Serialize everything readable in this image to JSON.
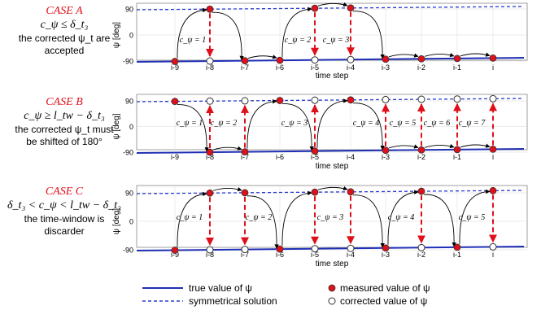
{
  "cases": [
    {
      "title": "CASE A",
      "condition": "c_ψ ≤ δ_t₃",
      "description": [
        "the corrected ψ_t  are",
        "accepted"
      ],
      "measured_high_steps": [
        "i-8",
        "i-5",
        "i-4"
      ],
      "c_labels": [
        "c_ψ = 1",
        "c_ψ = 2",
        "c_ψ = 3"
      ]
    },
    {
      "title": "CASE B",
      "condition": "c_ψ ≥ l_tw − δ_t₃",
      "description": [
        "the corrected ψ_t must",
        "be shifted of 180°"
      ],
      "measured_high_steps": [
        "i-9",
        "i-6",
        "i-4"
      ],
      "c_labels": [
        "c_ψ = 1",
        "c_ψ = 2",
        "c_ψ = 3",
        "c_ψ = 4",
        "c_ψ = 5",
        "c_ψ = 6",
        "c_ψ = 7"
      ]
    },
    {
      "title": "CASE C",
      "condition": "δ_t₃ < c_ψ < l_tw − δ_t₃",
      "description": [
        "the time-window is",
        "discarder"
      ],
      "measured_high_steps": [
        "i-8",
        "i-7",
        "i-5",
        "i-4",
        "i-2",
        "i"
      ],
      "c_labels": [
        "c_ψ = 1",
        "c_ψ = 2",
        "c_ψ = 3",
        "c_ψ = 4",
        "c_ψ = 5"
      ]
    }
  ],
  "axis": {
    "ylabel": "ψ [deg]",
    "xlabel": "time step",
    "yticks": [
      "90",
      "0",
      "-90"
    ],
    "xticks": [
      "i-9",
      "i-8",
      "i-7",
      "i-6",
      "i-5",
      "i-4",
      "i-3",
      "i-2",
      "i-1",
      "i"
    ]
  },
  "legend": {
    "true_value": "true value of ψ",
    "symmetrical": "symmetrical solution",
    "measured": "measured value of ψ",
    "corrected": "corrected value of ψ"
  },
  "colors": {
    "true_line": "#1f2fb5",
    "sym_line": "#2a3bd0",
    "measured": "#e0101a",
    "arrow_red": "#e0101a",
    "case_title": "#e0101a"
  }
}
